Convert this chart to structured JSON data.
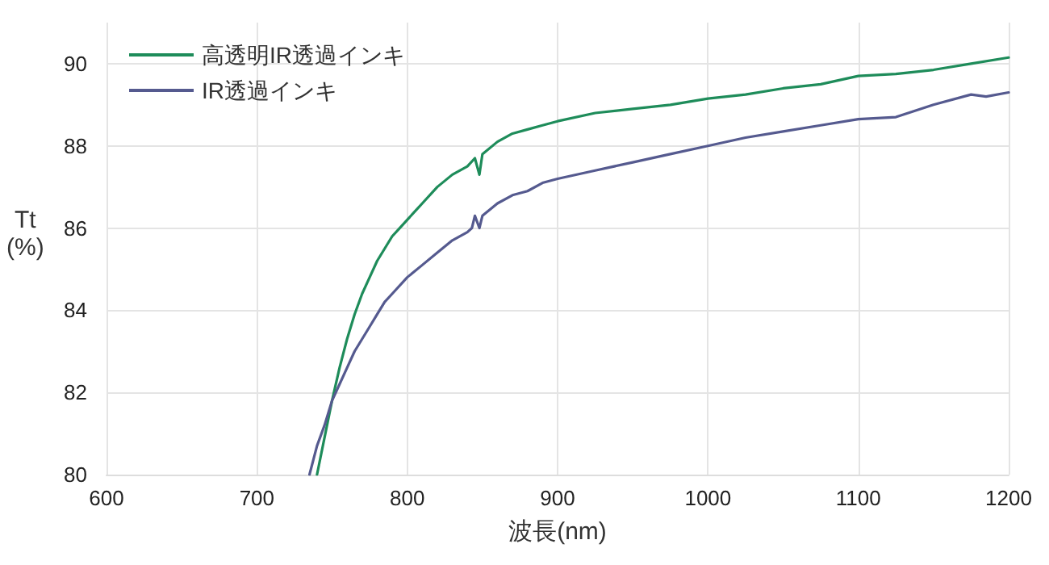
{
  "chart_data": {
    "type": "line",
    "xlabel": "波長(nm)",
    "ylabel": "Tt\n(%)",
    "xlim": [
      600,
      1200
    ],
    "xticks": [
      600,
      700,
      800,
      900,
      1000,
      1100,
      1200
    ],
    "ylim": [
      80,
      91
    ],
    "yticks": [
      80,
      82,
      84,
      86,
      88,
      90
    ],
    "grid": true,
    "legend": "top left",
    "marker": "none",
    "line_style": "solid",
    "series": [
      {
        "name": "高透明IR透過インキ",
        "color": "#1e8c5a",
        "x": [
          740,
          745,
          750,
          755,
          760,
          765,
          770,
          775,
          780,
          785,
          790,
          795,
          800,
          810,
          820,
          830,
          840,
          845,
          848,
          850,
          860,
          870,
          880,
          890,
          900,
          925,
          950,
          975,
          1000,
          1025,
          1050,
          1075,
          1100,
          1125,
          1150,
          1175,
          1200
        ],
        "values": [
          80,
          80.9,
          81.8,
          82.6,
          83.3,
          83.9,
          84.4,
          84.8,
          85.2,
          85.5,
          85.8,
          86.0,
          86.2,
          86.6,
          87.0,
          87.3,
          87.5,
          87.7,
          87.3,
          87.8,
          88.1,
          88.3,
          88.4,
          88.5,
          88.6,
          88.8,
          88.9,
          89.0,
          89.15,
          89.25,
          89.4,
          89.5,
          89.7,
          89.75,
          89.85,
          90.0,
          90.15
        ]
      },
      {
        "name": "IR透過インキ",
        "color": "#555a8f",
        "x": [
          735,
          740,
          745,
          750,
          755,
          760,
          765,
          770,
          775,
          780,
          785,
          790,
          800,
          810,
          820,
          830,
          840,
          843,
          845,
          848,
          850,
          860,
          870,
          880,
          890,
          900,
          925,
          950,
          975,
          1000,
          1025,
          1050,
          1075,
          1100,
          1125,
          1150,
          1175,
          1185,
          1200
        ],
        "values": [
          80,
          80.7,
          81.2,
          81.8,
          82.2,
          82.6,
          83.0,
          83.3,
          83.6,
          83.9,
          84.2,
          84.4,
          84.8,
          85.1,
          85.4,
          85.7,
          85.9,
          86.0,
          86.3,
          86.0,
          86.3,
          86.6,
          86.8,
          86.9,
          87.1,
          87.2,
          87.4,
          87.6,
          87.8,
          88.0,
          88.2,
          88.35,
          88.5,
          88.65,
          88.7,
          89.0,
          89.25,
          89.2,
          89.3
        ]
      }
    ]
  }
}
